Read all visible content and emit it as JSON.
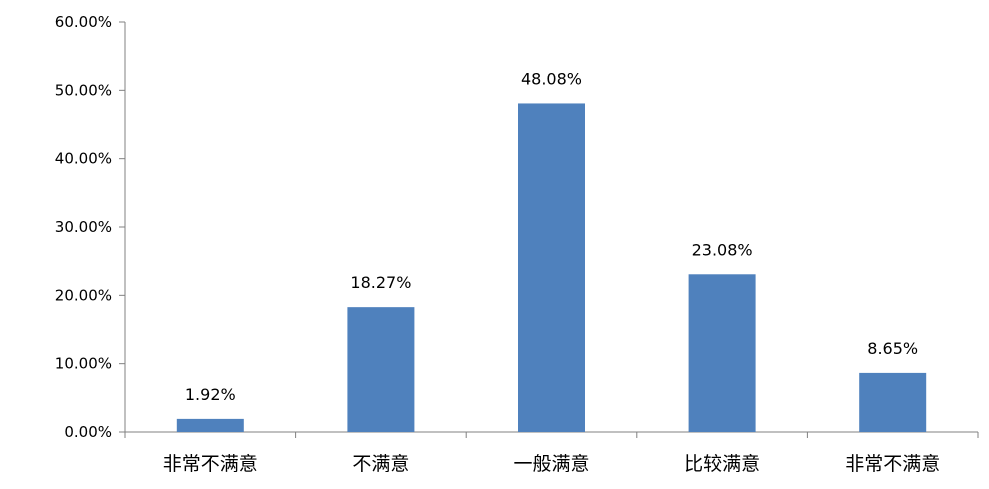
{
  "chart_data": {
    "type": "bar",
    "categories": [
      "非常不满意",
      "不满意",
      "一般满意",
      "比较满意",
      "非常不满意"
    ],
    "values": [
      1.92,
      18.27,
      48.08,
      23.08,
      8.65
    ],
    "data_labels": [
      "1.92%",
      "18.27%",
      "48.08%",
      "23.08%",
      "8.65%"
    ],
    "ylim": [
      0,
      60
    ],
    "yticks": [
      0,
      10,
      20,
      30,
      40,
      50,
      60
    ],
    "ytick_labels": [
      "0.00%",
      "10.00%",
      "20.00%",
      "30.00%",
      "40.00%",
      "50.00%",
      "60.00%"
    ],
    "grid": false,
    "legend": "none",
    "colors": {
      "bar": "#4F81BD",
      "axis": "#808080",
      "text": "#000000"
    }
  }
}
